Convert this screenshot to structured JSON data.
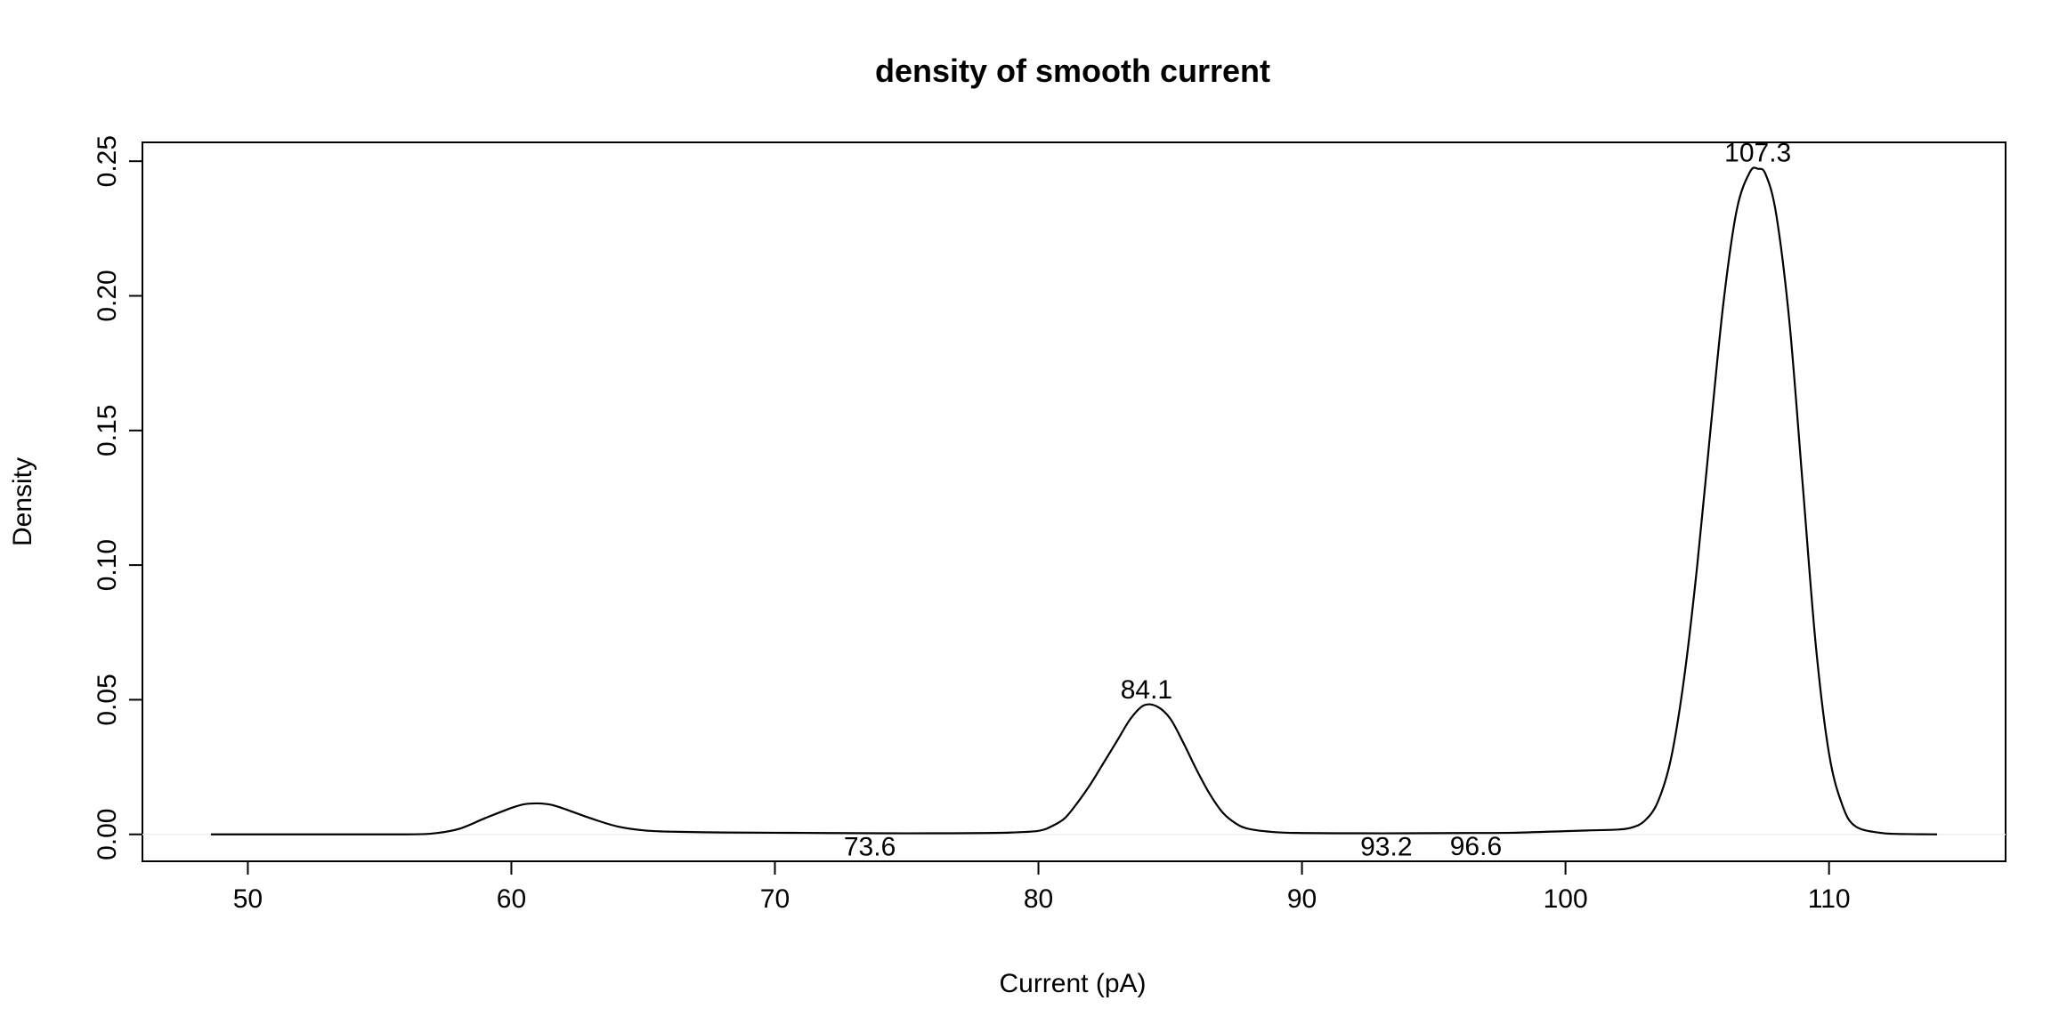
{
  "chart_data": {
    "type": "line",
    "title": "density of smooth current",
    "xlabel": "Current (pA)",
    "ylabel": "Density",
    "xlim": [
      46,
      116.7
    ],
    "ylim": [
      -0.01,
      0.257
    ],
    "x_ticks": [
      50,
      60,
      70,
      80,
      90,
      100,
      110
    ],
    "y_ticks": [
      0.0,
      0.05,
      0.1,
      0.15,
      0.2,
      0.25
    ],
    "y_tick_labels": [
      "0.00",
      "0.05",
      "0.10",
      "0.15",
      "0.20",
      "0.25"
    ],
    "grid": false,
    "legend": "none",
    "series": [
      {
        "x": [
          48.6,
          50,
          52,
          54,
          56,
          57,
          58,
          59,
          60,
          60.5,
          61,
          61.5,
          62,
          63,
          64,
          65,
          66,
          68,
          70,
          72,
          74,
          76,
          78,
          79,
          80,
          80.5,
          81,
          81.5,
          82,
          82.5,
          83,
          83.5,
          84,
          84.5,
          85,
          85.5,
          86,
          86.5,
          87,
          87.5,
          88,
          89,
          90,
          92,
          94,
          96,
          98,
          100,
          101,
          102,
          102.5,
          103,
          103.5,
          104,
          104.5,
          105,
          105.5,
          106,
          106.5,
          107,
          107.3,
          107.6,
          108,
          108.5,
          109,
          109.5,
          110,
          110.5,
          111,
          112,
          113,
          114.1
        ],
        "y": [
          0.0,
          0.0,
          0.0,
          0.0,
          0.0,
          0.0003,
          0.002,
          0.006,
          0.0098,
          0.0112,
          0.0115,
          0.011,
          0.0095,
          0.006,
          0.003,
          0.0015,
          0.001,
          0.0007,
          0.0006,
          0.0005,
          0.0004,
          0.0004,
          0.0005,
          0.0007,
          0.0013,
          0.003,
          0.006,
          0.012,
          0.019,
          0.027,
          0.035,
          0.043,
          0.0479,
          0.0475,
          0.043,
          0.034,
          0.024,
          0.015,
          0.008,
          0.004,
          0.002,
          0.0008,
          0.0005,
          0.0004,
          0.0004,
          0.0005,
          0.0006,
          0.0012,
          0.0015,
          0.0018,
          0.0025,
          0.005,
          0.012,
          0.028,
          0.058,
          0.1,
          0.15,
          0.198,
          0.232,
          0.246,
          0.2472,
          0.245,
          0.23,
          0.19,
          0.13,
          0.07,
          0.03,
          0.011,
          0.003,
          0.0005,
          0.0001,
          0.0
        ]
      }
    ],
    "annotations": [
      {
        "text": "107.3",
        "x": 107.3,
        "y": 0.2472,
        "position": "above"
      },
      {
        "text": "84.1",
        "x": 84.1,
        "y": 0.0479,
        "position": "above"
      },
      {
        "text": "73.6",
        "x": 73.6,
        "y": 0.0004,
        "position": "below"
      },
      {
        "text": "93.2",
        "x": 93.2,
        "y": 0.0004,
        "position": "below"
      },
      {
        "text": "96.6",
        "x": 96.6,
        "y": 0.0005,
        "position": "below"
      }
    ]
  }
}
